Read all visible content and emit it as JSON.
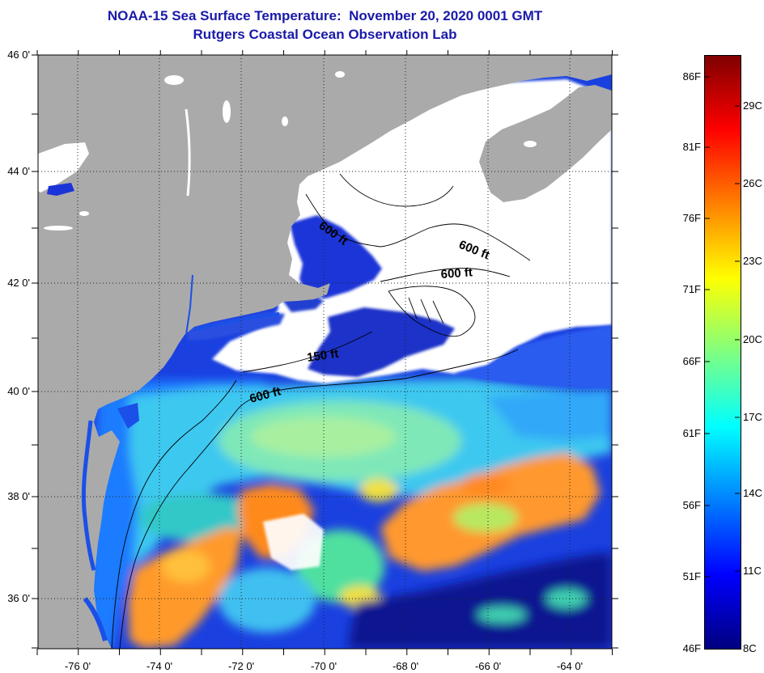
{
  "title": {
    "line1": "NOAA-15 Sea Surface Temperature:  November 20, 2020 0001 GMT",
    "line2": "Rutgers Coastal Ocean Observation Lab"
  },
  "colors": {
    "title": "#1a1aa8",
    "land": "#aaaaaa",
    "cloud": "#ffffff",
    "contour": "#000000"
  },
  "map": {
    "lat_labels": [
      "46 0'",
      "44 0'",
      "42 0'",
      "40 0'",
      "38 0'",
      "36 0'"
    ],
    "lon_labels": [
      "-76 0'",
      "-74 0'",
      "-72 0'",
      "-70 0'",
      "-68 0'",
      "-66 0'",
      "-64 0'"
    ],
    "contour_labels": [
      "600 ft",
      "600 ft",
      "600 ft",
      "150 ft",
      "600 ft"
    ]
  },
  "colorbar": {
    "fahrenheit_labels": [
      "86F",
      "81F",
      "76F",
      "71F",
      "66F",
      "61F",
      "56F",
      "51F",
      "46F"
    ],
    "celsius_labels": [
      "29C",
      "26C",
      "23C",
      "20C",
      "17C",
      "14C",
      "11C",
      "8C"
    ],
    "colormap": [
      "#800000",
      "#ff0000",
      "#ff8000",
      "#ffff00",
      "#80ff80",
      "#00ffff",
      "#0080ff",
      "#0000ff",
      "#000080"
    ]
  }
}
